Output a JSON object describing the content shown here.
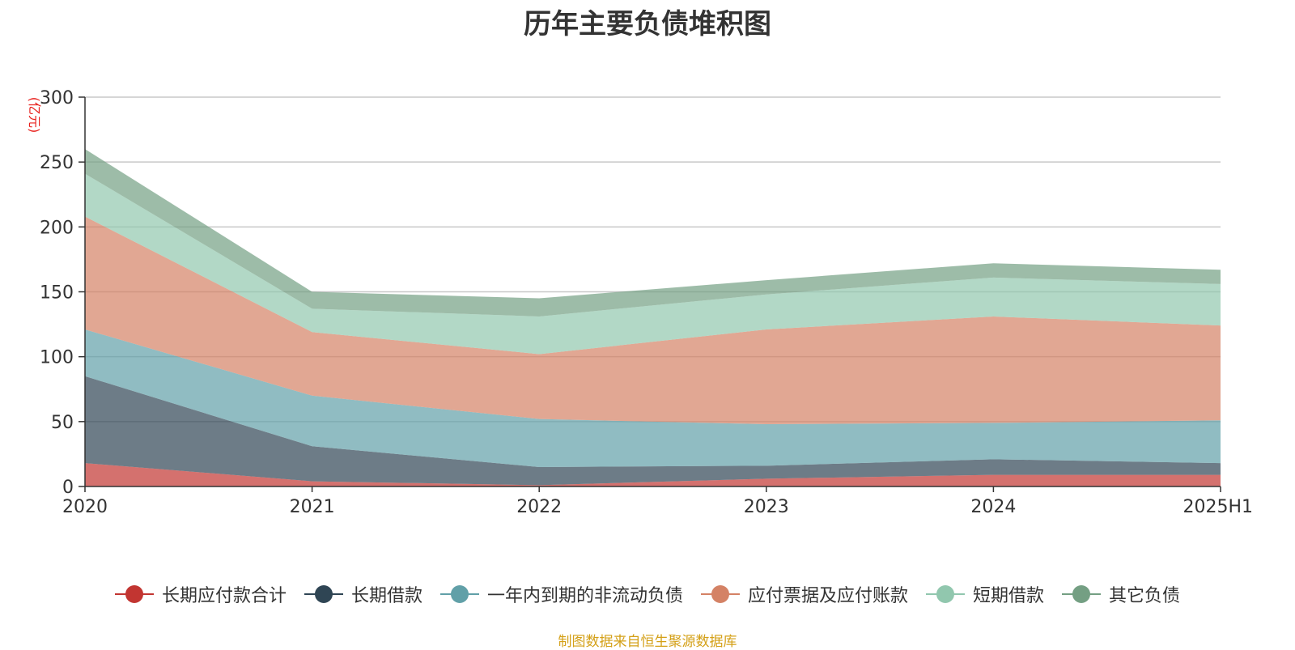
{
  "chart_data": {
    "type": "area",
    "stacked": true,
    "title": "历年主要负债堆积图",
    "unit_label": "(亿元)",
    "categories": [
      "2020",
      "2021",
      "2022",
      "2023",
      "2024",
      "2025H1"
    ],
    "ylim": [
      0,
      300
    ],
    "y_ticks": [
      0,
      50,
      100,
      150,
      200,
      250,
      300
    ],
    "grid": true,
    "legend_position": "bottom",
    "series": [
      {
        "name": "长期应付款合计",
        "color": "#c23531",
        "values": [
          18,
          4,
          1,
          6,
          9,
          9
        ]
      },
      {
        "name": "长期借款",
        "color": "#2f4554",
        "values": [
          67,
          27,
          14,
          10,
          12,
          9
        ]
      },
      {
        "name": "一年内到期的非流动负债",
        "color": "#61a0a8",
        "values": [
          36,
          39,
          37,
          32,
          28,
          33
        ]
      },
      {
        "name": "应付票据及应付账款",
        "color": "#d48265",
        "values": [
          87,
          49,
          50,
          73,
          82,
          73
        ]
      },
      {
        "name": "短期借款",
        "color": "#91c7ae",
        "values": [
          33,
          18,
          29,
          27,
          30,
          32
        ]
      },
      {
        "name": "其它负债",
        "color": "#749f83",
        "values": [
          19,
          13,
          14,
          11,
          11,
          11
        ]
      }
    ],
    "source_note": "制图数据来自恒生聚源数据库"
  }
}
